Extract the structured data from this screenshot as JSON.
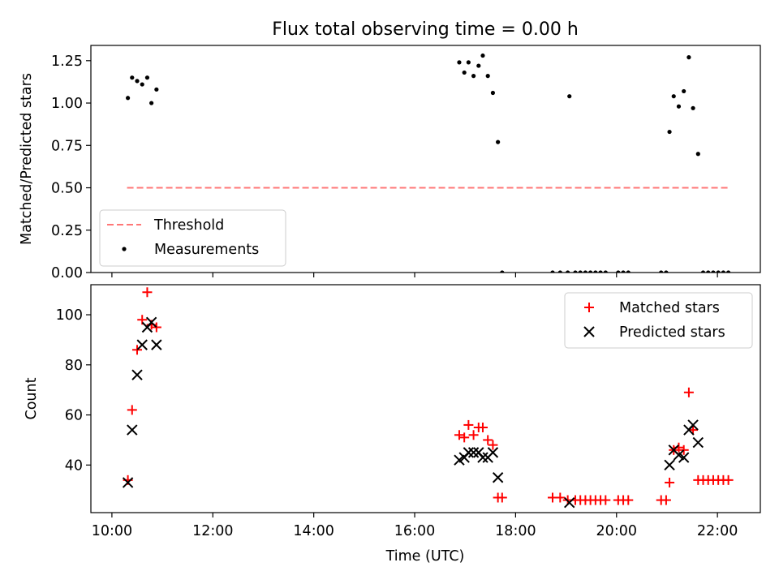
{
  "chart_data": [
    {
      "type": "scatter",
      "title": "Flux total observing time = 0.00 h",
      "xlabel": "",
      "ylabel": "Matched/Predicted stars",
      "xlim": [
        "09:35",
        "22:51"
      ],
      "ylim": [
        0,
        1.34
      ],
      "yticks": [
        {
          "value": 0.0,
          "label": "0.00"
        },
        {
          "value": 0.25,
          "label": "0.25"
        },
        {
          "value": 0.5,
          "label": "0.50"
        },
        {
          "value": 0.75,
          "label": "0.75"
        },
        {
          "value": 1.0,
          "label": "1.00"
        },
        {
          "value": 1.25,
          "label": "1.25"
        }
      ],
      "xticks": [
        "10:00",
        "12:00",
        "14:00",
        "16:00",
        "18:00",
        "20:00",
        "22:00"
      ],
      "legend_position": "lower-left",
      "threshold": {
        "name": "Threshold",
        "value": 0.5,
        "x_start": "10:18",
        "x_end": "22:15",
        "color": "#ff7777"
      },
      "series": [
        {
          "name": "Measurements",
          "color": "#000000",
          "marker": "dot",
          "points": [
            {
              "x": "10:19",
              "y": 1.03
            },
            {
              "x": "10:24",
              "y": 1.15
            },
            {
              "x": "10:30",
              "y": 1.13
            },
            {
              "x": "10:36",
              "y": 1.11
            },
            {
              "x": "10:42",
              "y": 1.15
            },
            {
              "x": "10:47",
              "y": 1.0
            },
            {
              "x": "10:53",
              "y": 1.08
            },
            {
              "x": "16:53",
              "y": 1.24
            },
            {
              "x": "16:59",
              "y": 1.18
            },
            {
              "x": "17:04",
              "y": 1.24
            },
            {
              "x": "17:10",
              "y": 1.16
            },
            {
              "x": "17:16",
              "y": 1.22
            },
            {
              "x": "17:21",
              "y": 1.28
            },
            {
              "x": "17:27",
              "y": 1.16
            },
            {
              "x": "17:33",
              "y": 1.06
            },
            {
              "x": "17:39",
              "y": 0.77
            },
            {
              "x": "17:44",
              "y": 0.0
            },
            {
              "x": "18:44",
              "y": 0.0
            },
            {
              "x": "18:53",
              "y": 0.0
            },
            {
              "x": "19:02",
              "y": 0.0
            },
            {
              "x": "19:04",
              "y": 1.04
            },
            {
              "x": "19:11",
              "y": 0.0
            },
            {
              "x": "19:17",
              "y": 0.0
            },
            {
              "x": "19:23",
              "y": 0.0
            },
            {
              "x": "19:29",
              "y": 0.0
            },
            {
              "x": "19:35",
              "y": 0.0
            },
            {
              "x": "19:41",
              "y": 0.0
            },
            {
              "x": "19:47",
              "y": 0.0
            },
            {
              "x": "20:02",
              "y": 0.0
            },
            {
              "x": "20:08",
              "y": 0.0
            },
            {
              "x": "20:14",
              "y": 0.0
            },
            {
              "x": "20:53",
              "y": 0.0
            },
            {
              "x": "20:59",
              "y": 0.0
            },
            {
              "x": "21:03",
              "y": 0.83
            },
            {
              "x": "21:08",
              "y": 1.04
            },
            {
              "x": "21:14",
              "y": 0.98
            },
            {
              "x": "21:20",
              "y": 1.07
            },
            {
              "x": "21:26",
              "y": 1.27
            },
            {
              "x": "21:31",
              "y": 0.97
            },
            {
              "x": "21:37",
              "y": 0.7
            },
            {
              "x": "21:43",
              "y": 0.0
            },
            {
              "x": "21:49",
              "y": 0.0
            },
            {
              "x": "21:55",
              "y": 0.0
            },
            {
              "x": "22:01",
              "y": 0.0
            },
            {
              "x": "22:07",
              "y": 0.0
            },
            {
              "x": "22:13",
              "y": 0.0
            }
          ]
        }
      ]
    },
    {
      "type": "scatter",
      "title": "",
      "xlabel": "Time (UTC)",
      "ylabel": "Count",
      "xlim": [
        "09:35",
        "22:51"
      ],
      "ylim": [
        21,
        112
      ],
      "yticks": [
        {
          "value": 40,
          "label": "40"
        },
        {
          "value": 60,
          "label": "60"
        },
        {
          "value": 80,
          "label": "80"
        },
        {
          "value": 100,
          "label": "100"
        }
      ],
      "xticks": [
        "10:00",
        "12:00",
        "14:00",
        "16:00",
        "18:00",
        "20:00",
        "22:00"
      ],
      "legend_position": "upper-right",
      "series": [
        {
          "name": "Matched stars",
          "color": "#ff0000",
          "marker": "plus",
          "points": [
            {
              "x": "10:19",
              "y": 34
            },
            {
              "x": "10:24",
              "y": 62
            },
            {
              "x": "10:30",
              "y": 86
            },
            {
              "x": "10:36",
              "y": 98
            },
            {
              "x": "10:42",
              "y": 109
            },
            {
              "x": "10:47",
              "y": 96
            },
            {
              "x": "10:53",
              "y": 95
            },
            {
              "x": "16:53",
              "y": 52
            },
            {
              "x": "16:59",
              "y": 51
            },
            {
              "x": "17:04",
              "y": 56
            },
            {
              "x": "17:10",
              "y": 52
            },
            {
              "x": "17:16",
              "y": 55
            },
            {
              "x": "17:21",
              "y": 55
            },
            {
              "x": "17:27",
              "y": 50
            },
            {
              "x": "17:33",
              "y": 48
            },
            {
              "x": "17:39",
              "y": 27
            },
            {
              "x": "17:44",
              "y": 27
            },
            {
              "x": "18:44",
              "y": 27
            },
            {
              "x": "18:53",
              "y": 27
            },
            {
              "x": "19:02",
              "y": 26
            },
            {
              "x": "19:11",
              "y": 26
            },
            {
              "x": "19:17",
              "y": 26
            },
            {
              "x": "19:23",
              "y": 26
            },
            {
              "x": "19:29",
              "y": 26
            },
            {
              "x": "19:35",
              "y": 26
            },
            {
              "x": "19:41",
              "y": 26
            },
            {
              "x": "19:47",
              "y": 26
            },
            {
              "x": "20:02",
              "y": 26
            },
            {
              "x": "20:08",
              "y": 26
            },
            {
              "x": "20:14",
              "y": 26
            },
            {
              "x": "20:53",
              "y": 26
            },
            {
              "x": "20:59",
              "y": 26
            },
            {
              "x": "21:03",
              "y": 33
            },
            {
              "x": "21:08",
              "y": 46
            },
            {
              "x": "21:14",
              "y": 47
            },
            {
              "x": "21:20",
              "y": 46
            },
            {
              "x": "21:26",
              "y": 69
            },
            {
              "x": "21:31",
              "y": 54
            },
            {
              "x": "21:37",
              "y": 34
            },
            {
              "x": "21:43",
              "y": 34
            },
            {
              "x": "21:49",
              "y": 34
            },
            {
              "x": "21:55",
              "y": 34
            },
            {
              "x": "22:01",
              "y": 34
            },
            {
              "x": "22:07",
              "y": 34
            },
            {
              "x": "22:13",
              "y": 34
            }
          ]
        },
        {
          "name": "Predicted stars",
          "color": "#000000",
          "marker": "x",
          "points": [
            {
              "x": "10:19",
              "y": 33
            },
            {
              "x": "10:24",
              "y": 54
            },
            {
              "x": "10:30",
              "y": 76
            },
            {
              "x": "10:36",
              "y": 88
            },
            {
              "x": "10:42",
              "y": 95
            },
            {
              "x": "10:47",
              "y": 97
            },
            {
              "x": "10:53",
              "y": 88
            },
            {
              "x": "16:53",
              "y": 42
            },
            {
              "x": "16:59",
              "y": 43
            },
            {
              "x": "17:04",
              "y": 45
            },
            {
              "x": "17:10",
              "y": 45
            },
            {
              "x": "17:16",
              "y": 45
            },
            {
              "x": "17:21",
              "y": 43
            },
            {
              "x": "17:27",
              "y": 43
            },
            {
              "x": "17:33",
              "y": 45
            },
            {
              "x": "17:39",
              "y": 35
            },
            {
              "x": "19:04",
              "y": 25
            },
            {
              "x": "21:03",
              "y": 40
            },
            {
              "x": "21:08",
              "y": 46
            },
            {
              "x": "21:14",
              "y": 44
            },
            {
              "x": "21:20",
              "y": 43
            },
            {
              "x": "21:26",
              "y": 54
            },
            {
              "x": "21:31",
              "y": 56
            },
            {
              "x": "21:37",
              "y": 49
            }
          ]
        }
      ]
    }
  ]
}
